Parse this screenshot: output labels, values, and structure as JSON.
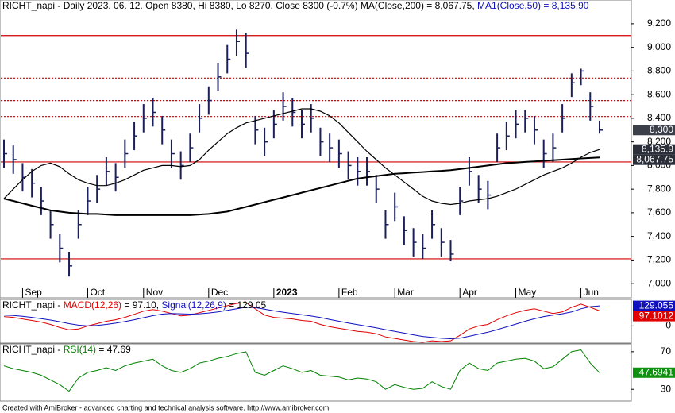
{
  "chart_data": [
    {
      "type": "ohlc",
      "title_parts": [
        {
          "text": "RICHT_napi - Daily 2023. 06. 12. Open 8380, Hi 8380, Lo 8270, Close 8300 (-0.7%) MA(Close,200) = 8,067.75, ",
          "color": "#000000"
        },
        {
          "text": "MA1(Close,50) = 8,135.90",
          "color": "#1010c0"
        }
      ],
      "categories": [
        null,
        null,
        "Sep",
        null,
        null,
        null,
        null,
        null,
        null,
        "Oct",
        null,
        null,
        null,
        null,
        null,
        "Nov",
        null,
        null,
        null,
        null,
        null,
        null,
        "Dec",
        null,
        null,
        null,
        null,
        null,
        null,
        "2023",
        null,
        null,
        null,
        null,
        null,
        null,
        "Feb",
        null,
        null,
        null,
        null,
        null,
        "Mar",
        null,
        null,
        null,
        null,
        null,
        null,
        "Apr",
        null,
        null,
        null,
        null,
        null,
        "May",
        null,
        null,
        null,
        null,
        null,
        null,
        "Jun",
        null,
        null
      ],
      "high": [
        8220,
        8170,
        8020,
        7970,
        7820,
        7620,
        7420,
        7270,
        7620,
        7820,
        7920,
        8070,
        8020,
        8220,
        8370,
        8520,
        8570,
        8420,
        8220,
        8120,
        8270,
        8520,
        8670,
        8870,
        9020,
        9150,
        9120,
        8420,
        8320,
        8470,
        8620,
        8570,
        8470,
        8520,
        8320,
        8270,
        8220,
        8120,
        8070,
        8070,
        7920,
        7620,
        7770,
        7570,
        7470,
        7420,
        7620,
        7470,
        7370,
        7820,
        8070,
        7920,
        7870,
        8270,
        8370,
        8470,
        8470,
        8420,
        8220,
        8270,
        8520,
        8780,
        8820,
        8620,
        8380
      ],
      "low": [
        7980,
        7930,
        7780,
        7730,
        7580,
        7380,
        7180,
        7060,
        7380,
        7580,
        7680,
        7830,
        7780,
        7980,
        8130,
        8280,
        8330,
        8180,
        7980,
        7880,
        8030,
        8280,
        8430,
        8630,
        8780,
        8930,
        8830,
        8180,
        8080,
        8230,
        8380,
        8330,
        8230,
        8280,
        8080,
        8030,
        7980,
        7880,
        7830,
        7830,
        7680,
        7380,
        7530,
        7330,
        7230,
        7210,
        7380,
        7230,
        7190,
        7580,
        7830,
        7680,
        7630,
        8030,
        8130,
        8230,
        8280,
        8180,
        7980,
        8030,
        8280,
        8580,
        8680,
        8380,
        8270
      ],
      "close": [
        8100,
        8050,
        7900,
        7850,
        7700,
        7500,
        7300,
        7150,
        7500,
        7700,
        7800,
        7950,
        7900,
        8100,
        8250,
        8400,
        8450,
        8300,
        8100,
        8000,
        8150,
        8400,
        8550,
        8750,
        8900,
        9050,
        8950,
        8300,
        8200,
        8350,
        8500,
        8450,
        8350,
        8400,
        8200,
        8150,
        8100,
        8000,
        7950,
        7950,
        7800,
        7500,
        7650,
        7450,
        7350,
        7300,
        7500,
        7350,
        7250,
        7700,
        7950,
        7800,
        7750,
        8150,
        8250,
        8350,
        8400,
        8300,
        8100,
        8150,
        8400,
        8700,
        8800,
        8500,
        8300
      ],
      "color": "#1b1f5c",
      "series": [
        {
          "color": "#000000",
          "width": 2,
          "values": [
            7720,
            7700,
            7680,
            7660,
            7640,
            7620,
            7610,
            7600,
            7595,
            7590,
            7590,
            7585,
            7580,
            7580,
            7580,
            7580,
            7580,
            7580,
            7580,
            7580,
            7580,
            7585,
            7590,
            7600,
            7610,
            7630,
            7650,
            7670,
            7690,
            7710,
            7730,
            7750,
            7770,
            7790,
            7810,
            7830,
            7850,
            7870,
            7890,
            7900,
            7910,
            7920,
            7930,
            7935,
            7940,
            7945,
            7950,
            7955,
            7960,
            7970,
            7980,
            7990,
            8000,
            8010,
            8020,
            8025,
            8030,
            8035,
            8040,
            8045,
            8050,
            8055,
            8060,
            8064,
            8067.75
          ]
        },
        {
          "color": "#000000",
          "width": 1.2,
          "values": [
            7720,
            7800,
            7880,
            7950,
            8000,
            8020,
            7990,
            7930,
            7880,
            7850,
            7830,
            7830,
            7850,
            7880,
            7920,
            7960,
            7980,
            8000,
            8000,
            7990,
            8000,
            8050,
            8130,
            8200,
            8270,
            8320,
            8360,
            8380,
            8400,
            8420,
            8440,
            8460,
            8480,
            8480,
            8460,
            8420,
            8360,
            8280,
            8200,
            8120,
            8050,
            7980,
            7920,
            7860,
            7800,
            7740,
            7700,
            7680,
            7670,
            7680,
            7700,
            7710,
            7720,
            7740,
            7770,
            7800,
            7840,
            7880,
            7920,
            7950,
            7980,
            8020,
            8070,
            8110,
            8135.9
          ]
        }
      ],
      "ylim": [
        6880,
        9280
      ],
      "yticks": [
        {
          "value": 7000,
          "label": "7,000"
        },
        {
          "value": 7200,
          "label": "7,200"
        },
        {
          "value": 7400,
          "label": "7,400"
        },
        {
          "value": 7600,
          "label": "7,600"
        },
        {
          "value": 7800,
          "label": "7,800"
        },
        {
          "value": 8000,
          "label": "8,000"
        },
        {
          "value": 8200,
          "label": "8,200"
        },
        {
          "value": 8400,
          "label": "8,400"
        },
        {
          "value": 8600,
          "label": "8,600"
        },
        {
          "value": 8800,
          "label": "8,800"
        },
        {
          "value": 9000,
          "label": "9,000"
        },
        {
          "value": 9200,
          "label": "9,200"
        }
      ],
      "levels": [
        {
          "value": 9100,
          "style": "solid"
        },
        {
          "value": 8740,
          "style": "dotted"
        },
        {
          "value": 8550,
          "style": "dotted"
        },
        {
          "value": 8415,
          "style": "dotted"
        },
        {
          "value": 8030,
          "style": "solid"
        },
        {
          "value": 7210,
          "style": "solid"
        }
      ],
      "level_color": "#d00000",
      "price_labels": [
        {
          "value": 8300,
          "label": "8,300",
          "color": "#3a3f4a"
        },
        {
          "value": 8135.9,
          "label": "8,135.9",
          "color": "#2a2f3a"
        },
        {
          "value": 8067.75,
          "label": "8,067.75",
          "color": "#2a2f3a"
        }
      ]
    },
    {
      "type": "line",
      "title_parts": [
        {
          "text": "RICHT_napi - ",
          "color": "#000000"
        },
        {
          "text": "MACD(12,26)",
          "color": "#e00000"
        },
        {
          "text": " = 97.10, ",
          "color": "#000000"
        },
        {
          "text": "Signal(12,26,9)",
          "color": "#1010c0"
        },
        {
          "text": " = 129.05",
          "color": "#000000"
        }
      ],
      "series": [
        {
          "color": "#e00000",
          "width": 1,
          "values": [
            60,
            55,
            45,
            35,
            25,
            10,
            -10,
            -25,
            -20,
            0,
            15,
            30,
            40,
            55,
            75,
            95,
            105,
            95,
            80,
            65,
            70,
            85,
            100,
            115,
            130,
            145,
            150,
            110,
            70,
            55,
            50,
            45,
            35,
            30,
            10,
            -5,
            -15,
            -25,
            -35,
            -40,
            -50,
            -70,
            -80,
            -90,
            -100,
            -105,
            -95,
            -100,
            -95,
            -60,
            -20,
            0,
            10,
            40,
            65,
            85,
            100,
            110,
            95,
            80,
            90,
            120,
            140,
            120,
            97.1
          ]
        },
        {
          "color": "#1010c0",
          "width": 1,
          "values": [
            70,
            67,
            62,
            55,
            47,
            38,
            27,
            15,
            5,
            0,
            3,
            10,
            18,
            28,
            40,
            53,
            66,
            76,
            80,
            78,
            76,
            78,
            83,
            90,
            100,
            110,
            120,
            118,
            108,
            97,
            88,
            80,
            72,
            64,
            54,
            42,
            30,
            19,
            8,
            -2,
            -12,
            -24,
            -35,
            -46,
            -57,
            -67,
            -73,
            -79,
            -82,
            -78,
            -66,
            -53,
            -40,
            -24,
            -6,
            12,
            30,
            46,
            60,
            70,
            78,
            90,
            110,
            124,
            129.05
          ]
        }
      ],
      "ylim": [
        -110,
        155
      ],
      "yticks": [
        0
      ],
      "value_boxes": [
        {
          "value": 129.055,
          "color": "#1010c0"
        },
        {
          "value": 97.1012,
          "color": "#e00000"
        }
      ]
    },
    {
      "type": "line",
      "title_parts": [
        {
          "text": "RICHT_napi - ",
          "color": "#000000"
        },
        {
          "text": "RSI(14)",
          "color": "#008000"
        },
        {
          "text": " = 47.69",
          "color": "#000000"
        }
      ],
      "series": [
        {
          "color": "#008000",
          "width": 1,
          "values": [
            55,
            52,
            50,
            48,
            45,
            40,
            35,
            28,
            42,
            48,
            50,
            53,
            50,
            55,
            58,
            60,
            62,
            55,
            50,
            48,
            52,
            58,
            60,
            63,
            65,
            68,
            70,
            48,
            45,
            50,
            55,
            52,
            48,
            50,
            45,
            44,
            43,
            40,
            42,
            41,
            38,
            30,
            35,
            32,
            30,
            31,
            38,
            33,
            30,
            50,
            58,
            52,
            50,
            58,
            60,
            62,
            63,
            60,
            52,
            54,
            62,
            70,
            72,
            58,
            47.69
          ]
        }
      ],
      "ylim": [
        17.5,
        75.8
      ],
      "yticks": [
        30,
        70
      ],
      "value_boxes": [
        {
          "value": 47.6941,
          "color": "#109010"
        }
      ]
    }
  ],
  "footer": "Created with AmiBroker - advanced charting and technical analysis software. http://www.amibroker.com"
}
